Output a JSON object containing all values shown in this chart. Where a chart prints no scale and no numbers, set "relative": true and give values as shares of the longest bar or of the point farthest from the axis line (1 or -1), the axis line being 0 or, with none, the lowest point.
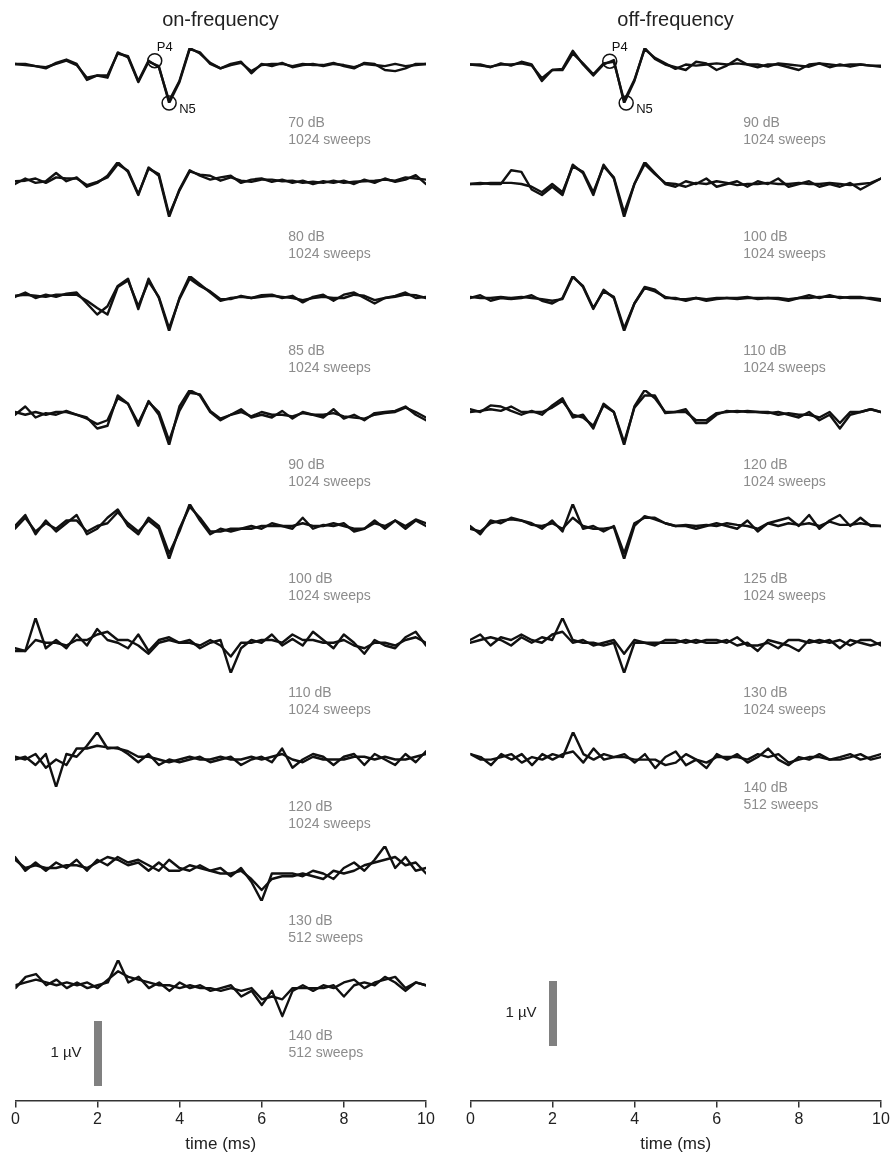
{
  "chart_data": [
    {
      "type": "line",
      "title": "on-frequency",
      "relative": true,
      "xlim": [
        0,
        10
      ],
      "tick_labels": false,
      "x": [
        0,
        0.25,
        0.5,
        0.75,
        1,
        1.25,
        1.5,
        1.75,
        2,
        2.25,
        2.5,
        2.75,
        3,
        3.25,
        3.5,
        3.75,
        4,
        4.25,
        4.5,
        4.75,
        5,
        5.25,
        5.5,
        5.75,
        6,
        6.25,
        6.5,
        6.75,
        7,
        7.25,
        7.5,
        7.75,
        8,
        8.25,
        8.5,
        8.75,
        9,
        9.25,
        9.5,
        9.75,
        10
      ],
      "annotations": [
        "70 dB",
        "1024 sweeps",
        {
          "text": "P4",
          "x": 3.4,
          "y": 0.77
        },
        {
          "text": "N5",
          "x": 3.75,
          "y": 0
        }
      ],
      "series": [
        {
          "color": "#111111",
          "values": [
            0.71,
            0.71,
            0.67,
            0.63,
            0.73,
            0.79,
            0.71,
            0.42,
            0.5,
            0.46,
            0.92,
            0.83,
            0.38,
            0.75,
            0.67,
            0,
            0.38,
            0.98,
            0.92,
            0.71,
            0.63,
            0.71,
            0.75,
            0.54,
            0.71,
            0.67,
            0.73,
            0.65,
            0.69,
            0.71,
            0.67,
            0.71,
            0.69,
            0.65,
            0.71,
            0.69,
            0.67,
            0.71,
            0.67,
            0.69,
            0.71
          ]
        },
        {
          "color": "#111111",
          "values": [
            0.71,
            0.69,
            0.67,
            0.65,
            0.71,
            0.77,
            0.69,
            0.46,
            0.5,
            0.5,
            0.9,
            0.85,
            0.4,
            0.77,
            0.65,
            0.04,
            0.4,
            1,
            0.9,
            0.73,
            0.63,
            0.69,
            0.73,
            0.58,
            0.69,
            0.71,
            0.71,
            0.67,
            0.71,
            0.69,
            0.69,
            0.73,
            0.67,
            0.63,
            0.73,
            0.71,
            0.6,
            0.58,
            0.63,
            0.71,
            0.71
          ]
        }
      ]
    },
    {
      "type": "line",
      "relative": true,
      "xlim": [
        0,
        10
      ],
      "tick_labels": false,
      "x": [
        0,
        0.25,
        0.5,
        0.75,
        1,
        1.25,
        1.5,
        1.75,
        2,
        2.25,
        2.5,
        2.75,
        3,
        3.25,
        3.5,
        3.75,
        4,
        4.25,
        4.5,
        4.75,
        5,
        5.25,
        5.5,
        5.75,
        6,
        6.25,
        6.5,
        6.75,
        7,
        7.25,
        7.5,
        7.75,
        8,
        8.25,
        8.5,
        8.75,
        9,
        9.25,
        9.5,
        9.75,
        10
      ],
      "annotations": [
        "80 dB",
        "1024 sweeps"
      ],
      "series": [
        {
          "color": "#111111",
          "values": [
            0.6,
            0.7,
            0.62,
            0.65,
            0.8,
            0.65,
            0.72,
            0.55,
            0.62,
            0.75,
            1,
            0.82,
            0.4,
            0.9,
            0.75,
            0,
            0.5,
            0.85,
            0.75,
            0.68,
            0.72,
            0.75,
            0.62,
            0.68,
            0.7,
            0.64,
            0.68,
            0.62,
            0.66,
            0.6,
            0.65,
            0.62,
            0.66,
            0.6,
            0.68,
            0.62,
            0.7,
            0.64,
            0.68,
            0.76,
            0.6
          ]
        },
        {
          "color": "#111111",
          "values": [
            0.65,
            0.66,
            0.7,
            0.62,
            0.72,
            0.7,
            0.7,
            0.58,
            0.64,
            0.72,
            0.96,
            0.84,
            0.42,
            0.88,
            0.78,
            0.04,
            0.48,
            0.83,
            0.77,
            0.75,
            0.66,
            0.72,
            0.66,
            0.64,
            0.68,
            0.68,
            0.65,
            0.66,
            0.62,
            0.64,
            0.62,
            0.66,
            0.62,
            0.64,
            0.65,
            0.66,
            0.68,
            0.66,
            0.72,
            0.7,
            0.68
          ]
        }
      ]
    },
    {
      "type": "line",
      "relative": true,
      "xlim": [
        0,
        10
      ],
      "tick_labels": false,
      "x": [
        0,
        0.25,
        0.5,
        0.75,
        1,
        1.25,
        1.5,
        1.75,
        2,
        2.25,
        2.5,
        2.75,
        3,
        3.25,
        3.5,
        3.75,
        4,
        4.25,
        4.5,
        4.75,
        5,
        5.25,
        5.5,
        5.75,
        6,
        6.25,
        6.5,
        6.75,
        7,
        7.25,
        7.5,
        7.75,
        8,
        8.25,
        8.5,
        8.75,
        9,
        9.25,
        9.5,
        9.75,
        10
      ],
      "annotations": [
        "85 dB",
        "1024 sweeps"
      ],
      "series": [
        {
          "color": "#111111",
          "values": [
            0.62,
            0.7,
            0.6,
            0.66,
            0.62,
            0.68,
            0.7,
            0.5,
            0.3,
            0.45,
            0.82,
            0.95,
            0.4,
            0.95,
            0.6,
            0,
            0.6,
            1,
            0.85,
            0.7,
            0.55,
            0.6,
            0.62,
            0.6,
            0.65,
            0.66,
            0.6,
            0.64,
            0.52,
            0.62,
            0.66,
            0.55,
            0.66,
            0.7,
            0.6,
            0.5,
            0.6,
            0.64,
            0.7,
            0.6,
            0.62
          ]
        },
        {
          "color": "#111111",
          "values": [
            0.64,
            0.66,
            0.64,
            0.62,
            0.66,
            0.66,
            0.66,
            0.55,
            0.42,
            0.3,
            0.8,
            0.92,
            0.45,
            0.9,
            0.62,
            0.05,
            0.58,
            0.95,
            0.82,
            0.72,
            0.58,
            0.58,
            0.64,
            0.6,
            0.62,
            0.64,
            0.62,
            0.6,
            0.56,
            0.6,
            0.62,
            0.6,
            0.6,
            0.66,
            0.64,
            0.56,
            0.6,
            0.62,
            0.66,
            0.65,
            0.6
          ]
        }
      ]
    },
    {
      "type": "line",
      "relative": true,
      "xlim": [
        0,
        10
      ],
      "tick_labels": false,
      "x": [
        0,
        0.25,
        0.5,
        0.75,
        1,
        1.25,
        1.5,
        1.75,
        2,
        2.25,
        2.5,
        2.75,
        3,
        3.25,
        3.5,
        3.75,
        4,
        4.25,
        4.5,
        4.75,
        5,
        5.25,
        5.5,
        5.75,
        6,
        6.25,
        6.5,
        6.75,
        7,
        7.25,
        7.5,
        7.75,
        8,
        8.25,
        8.5,
        8.75,
        9,
        9.25,
        9.5,
        9.75,
        10
      ],
      "annotations": [
        "90 dB",
        "1024 sweeps"
      ],
      "series": [
        {
          "color": "#111111",
          "values": [
            0.55,
            0.7,
            0.5,
            0.58,
            0.55,
            0.62,
            0.55,
            0.5,
            0.3,
            0.35,
            0.9,
            0.75,
            0.35,
            0.8,
            0.55,
            0,
            0.7,
            1,
            0.9,
            0.6,
            0.45,
            0.55,
            0.65,
            0.5,
            0.55,
            0.5,
            0.62,
            0.48,
            0.6,
            0.55,
            0.5,
            0.65,
            0.48,
            0.55,
            0.45,
            0.58,
            0.6,
            0.62,
            0.7,
            0.55,
            0.45
          ]
        },
        {
          "color": "#111111",
          "values": [
            0.6,
            0.55,
            0.6,
            0.55,
            0.6,
            0.6,
            0.55,
            0.48,
            0.38,
            0.45,
            0.85,
            0.75,
            0.4,
            0.78,
            0.6,
            0.08,
            0.62,
            0.95,
            0.92,
            0.62,
            0.48,
            0.55,
            0.6,
            0.52,
            0.6,
            0.55,
            0.55,
            0.52,
            0.58,
            0.55,
            0.55,
            0.58,
            0.52,
            0.5,
            0.48,
            0.55,
            0.58,
            0.6,
            0.68,
            0.6,
            0.5
          ]
        }
      ]
    },
    {
      "type": "line",
      "relative": true,
      "xlim": [
        0,
        10
      ],
      "tick_labels": false,
      "x": [
        0,
        0.25,
        0.5,
        0.75,
        1,
        1.25,
        1.5,
        1.75,
        2,
        2.25,
        2.5,
        2.75,
        3,
        3.25,
        3.5,
        3.75,
        4,
        4.25,
        4.5,
        4.75,
        5,
        5.25,
        5.5,
        5.75,
        6,
        6.25,
        6.5,
        6.75,
        7,
        7.25,
        7.5,
        7.75,
        8,
        8.25,
        8.5,
        8.75,
        9,
        9.25,
        9.5,
        9.75,
        10
      ],
      "annotations": [
        "100 dB",
        "1024 sweeps"
      ],
      "series": [
        {
          "color": "#111111",
          "values": [
            0.6,
            0.8,
            0.45,
            0.7,
            0.5,
            0.65,
            0.8,
            0.45,
            0.55,
            0.75,
            0.9,
            0.6,
            0.45,
            0.75,
            0.6,
            0.1,
            0.5,
            1,
            0.7,
            0.45,
            0.55,
            0.5,
            0.55,
            0.6,
            0.55,
            0.65,
            0.6,
            0.55,
            0.75,
            0.55,
            0.62,
            0.6,
            0.65,
            0.5,
            0.55,
            0.65,
            0.6,
            0.7,
            0.55,
            0.7,
            0.6
          ]
        },
        {
          "color": "#111111",
          "values": [
            0.55,
            0.75,
            0.5,
            0.65,
            0.55,
            0.7,
            0.7,
            0.5,
            0.6,
            0.65,
            0.85,
            0.65,
            0.5,
            0.7,
            0.55,
            0,
            0.55,
            0.95,
            0.75,
            0.5,
            0.5,
            0.55,
            0.55,
            0.55,
            0.6,
            0.6,
            0.6,
            0.6,
            0.65,
            0.6,
            0.6,
            0.65,
            0.6,
            0.55,
            0.55,
            0.7,
            0.55,
            0.7,
            0.6,
            0.72,
            0.65
          ]
        }
      ]
    },
    {
      "type": "line",
      "relative": true,
      "xlim": [
        0,
        10
      ],
      "tick_labels": false,
      "x": [
        0,
        0.25,
        0.5,
        0.75,
        1,
        1.25,
        1.5,
        1.75,
        2,
        2.25,
        2.5,
        2.75,
        3,
        3.25,
        3.5,
        3.75,
        4,
        4.25,
        4.5,
        4.75,
        5,
        5.25,
        5.5,
        5.75,
        6,
        6.25,
        6.5,
        6.75,
        7,
        7.25,
        7.5,
        7.75,
        8,
        8.25,
        8.5,
        8.75,
        9,
        9.25,
        9.5,
        9.75,
        10
      ],
      "annotations": [
        "110 dB",
        "1024 sweeps"
      ],
      "series": [
        {
          "color": "#111111",
          "values": [
            0.45,
            0.4,
            1,
            0.45,
            0.6,
            0.45,
            0.7,
            0.5,
            0.8,
            0.6,
            0.55,
            0.45,
            0.7,
            0.4,
            0.6,
            0.65,
            0.55,
            0.6,
            0.45,
            0.55,
            0.6,
            0,
            0.45,
            0.6,
            0.55,
            0.7,
            0.5,
            0.62,
            0.5,
            0.75,
            0.6,
            0.45,
            0.7,
            0.55,
            0.35,
            0.6,
            0.5,
            0.45,
            0.65,
            0.75,
            0.5
          ]
        },
        {
          "color": "#111111",
          "values": [
            0.4,
            0.4,
            0.6,
            0.55,
            0.55,
            0.5,
            0.6,
            0.6,
            0.7,
            0.75,
            0.6,
            0.6,
            0.5,
            0.35,
            0.55,
            0.6,
            0.55,
            0.55,
            0.5,
            0.6,
            0.5,
            0.3,
            0.55,
            0.55,
            0.6,
            0.6,
            0.55,
            0.7,
            0.6,
            0.6,
            0.55,
            0.55,
            0.6,
            0.5,
            0.45,
            0.55,
            0.55,
            0.5,
            0.6,
            0.65,
            0.55
          ]
        }
      ]
    },
    {
      "type": "line",
      "relative": true,
      "xlim": [
        0,
        10
      ],
      "tick_labels": false,
      "x": [
        0,
        0.25,
        0.5,
        0.75,
        1,
        1.25,
        1.5,
        1.75,
        2,
        2.25,
        2.5,
        2.75,
        3,
        3.25,
        3.5,
        3.75,
        4,
        4.25,
        4.5,
        4.75,
        5,
        5.25,
        5.5,
        5.75,
        6,
        6.25,
        6.5,
        6.75,
        7,
        7.25,
        7.5,
        7.75,
        8,
        8.25,
        8.5,
        8.75,
        9,
        9.25,
        9.5,
        9.75,
        10
      ],
      "annotations": [
        "120 dB",
        "1024 sweeps"
      ],
      "series": [
        {
          "color": "#111111",
          "values": [
            0.5,
            0.55,
            0.4,
            0.6,
            0,
            0.6,
            0.55,
            0.75,
            1,
            0.7,
            0.72,
            0.6,
            0.45,
            0.6,
            0.4,
            0.5,
            0.45,
            0.5,
            0.55,
            0.45,
            0.5,
            0.55,
            0.4,
            0.5,
            0.55,
            0.45,
            0.7,
            0.35,
            0.5,
            0.6,
            0.55,
            0.4,
            0.55,
            0.6,
            0.4,
            0.6,
            0.5,
            0.4,
            0.6,
            0.45,
            0.65
          ]
        },
        {
          "color": "#111111",
          "values": [
            0.55,
            0.5,
            0.6,
            0.35,
            0.5,
            0.4,
            0.7,
            0.7,
            0.75,
            0.72,
            0.7,
            0.65,
            0.55,
            0.55,
            0.5,
            0.45,
            0.5,
            0.55,
            0.5,
            0.5,
            0.55,
            0.5,
            0.5,
            0.55,
            0.5,
            0.55,
            0.6,
            0.5,
            0.45,
            0.55,
            0.5,
            0.5,
            0.5,
            0.55,
            0.55,
            0.5,
            0.55,
            0.5,
            0.5,
            0.55,
            0.6
          ]
        }
      ]
    },
    {
      "type": "line",
      "relative": true,
      "xlim": [
        0,
        10
      ],
      "tick_labels": false,
      "x": [
        0,
        0.25,
        0.5,
        0.75,
        1,
        1.25,
        1.5,
        1.75,
        2,
        2.25,
        2.5,
        2.75,
        3,
        3.25,
        3.5,
        3.75,
        4,
        4.25,
        4.5,
        4.75,
        5,
        5.25,
        5.5,
        5.75,
        6,
        6.25,
        6.5,
        6.75,
        7,
        7.25,
        7.5,
        7.75,
        8,
        8.25,
        8.5,
        8.75,
        9,
        9.25,
        9.5,
        9.75,
        10
      ],
      "annotations": [
        "130 dB",
        "512 sweeps"
      ],
      "series": [
        {
          "color": "#111111",
          "values": [
            0.8,
            0.55,
            0.7,
            0.55,
            0.7,
            0.6,
            0.75,
            0.55,
            0.75,
            0.65,
            0.8,
            0.7,
            0.75,
            0.65,
            0.55,
            0.75,
            0.6,
            0.55,
            0.65,
            0.55,
            0.6,
            0.45,
            0.6,
            0.35,
            0,
            0.5,
            0.5,
            0.5,
            0.45,
            0.55,
            0.5,
            0.4,
            0.6,
            0.7,
            0.55,
            0.75,
            1,
            0.6,
            0.8,
            0.55,
            0.6
          ]
        },
        {
          "color": "#111111",
          "values": [
            0.75,
            0.6,
            0.65,
            0.6,
            0.6,
            0.65,
            0.65,
            0.6,
            0.7,
            0.8,
            0.75,
            0.65,
            0.7,
            0.55,
            0.7,
            0.55,
            0.55,
            0.65,
            0.6,
            0.55,
            0.5,
            0.5,
            0.55,
            0.4,
            0.2,
            0.4,
            0.45,
            0.45,
            0.5,
            0.45,
            0.4,
            0.55,
            0.5,
            0.55,
            0.65,
            0.7,
            0.75,
            0.8,
            0.65,
            0.7,
            0.5
          ]
        }
      ]
    },
    {
      "type": "line",
      "relative": true,
      "xlim": [
        0,
        10
      ],
      "xticks": [
        0,
        2,
        4,
        6,
        8,
        10
      ],
      "xlabel": "time (ms)",
      "tick_labels": "x",
      "x": [
        0,
        0.25,
        0.5,
        0.75,
        1,
        1.25,
        1.5,
        1.75,
        2,
        2.25,
        2.5,
        2.75,
        3,
        3.25,
        3.5,
        3.75,
        4,
        4.25,
        4.5,
        4.75,
        5,
        5.25,
        5.5,
        5.75,
        6,
        6.25,
        6.5,
        6.75,
        7,
        7.25,
        7.5,
        7.75,
        8,
        8.25,
        8.5,
        8.75,
        9,
        9.25,
        9.5,
        9.75,
        10
      ],
      "annotations": [
        "140 dB",
        "512 sweeps",
        "1 µV"
      ],
      "series": [
        {
          "color": "#111111",
          "values": [
            0.8,
            0.88,
            0.9,
            0.82,
            0.86,
            0.8,
            0.84,
            0.8,
            0.82,
            0.84,
            1,
            0.84,
            0.88,
            0.8,
            0.84,
            0.78,
            0.84,
            0.8,
            0.82,
            0.78,
            0.8,
            0.82,
            0.74,
            0.78,
            0.68,
            0.78,
            0.6,
            0.78,
            0.82,
            0.78,
            0.82,
            0.8,
            0.84,
            0.86,
            0.8,
            0.84,
            0.86,
            0.88,
            0.8,
            0.84,
            0.82
          ]
        },
        {
          "color": "#111111",
          "values": [
            0.82,
            0.84,
            0.86,
            0.84,
            0.82,
            0.84,
            0.82,
            0.84,
            0.8,
            0.86,
            0.92,
            0.88,
            0.86,
            0.84,
            0.82,
            0.82,
            0.8,
            0.82,
            0.8,
            0.8,
            0.78,
            0.8,
            0.78,
            0.8,
            0.72,
            0.74,
            0.72,
            0.8,
            0.8,
            0.8,
            0.8,
            0.82,
            0.74,
            0.82,
            0.84,
            0.82,
            0.88,
            0.84,
            0.78,
            0.84,
            0.82
          ]
        }
      ]
    },
    {
      "type": "line",
      "title": "off-frequency",
      "relative": true,
      "xlim": [
        0,
        10
      ],
      "tick_labels": false,
      "x": [
        0,
        0.25,
        0.5,
        0.75,
        1,
        1.25,
        1.5,
        1.75,
        2,
        2.25,
        2.5,
        2.75,
        3,
        3.25,
        3.5,
        3.75,
        4,
        4.25,
        4.5,
        4.75,
        5,
        5.25,
        5.5,
        5.75,
        6,
        6.25,
        6.5,
        6.75,
        7,
        7.25,
        7.5,
        7.75,
        8,
        8.25,
        8.5,
        8.75,
        9,
        9.25,
        9.5,
        9.75,
        10
      ],
      "annotations": [
        "90 dB",
        "1024 sweeps",
        {
          "text": "P4",
          "x": 3.4,
          "y": 0.76
        },
        {
          "text": "N5",
          "x": 3.8,
          "y": 0
        }
      ],
      "series": [
        {
          "color": "#111111",
          "values": [
            0.7,
            0.7,
            0.65,
            0.72,
            0.68,
            0.75,
            0.7,
            0.4,
            0.6,
            0.62,
            0.95,
            0.7,
            0.5,
            0.7,
            0.78,
            0,
            0.4,
            1,
            0.8,
            0.7,
            0.65,
            0.6,
            0.75,
            0.72,
            0.6,
            0.68,
            0.8,
            0.7,
            0.65,
            0.7,
            0.7,
            0.65,
            0.6,
            0.7,
            0.72,
            0.65,
            0.7,
            0.66,
            0.7,
            0.68,
            0.66
          ]
        },
        {
          "color": "#111111",
          "values": [
            0.7,
            0.68,
            0.66,
            0.7,
            0.7,
            0.72,
            0.68,
            0.45,
            0.6,
            0.6,
            0.9,
            0.72,
            0.52,
            0.72,
            0.75,
            0.04,
            0.42,
            0.98,
            0.82,
            0.72,
            0.62,
            0.7,
            0.68,
            0.7,
            0.72,
            0.7,
            0.72,
            0.7,
            0.7,
            0.66,
            0.72,
            0.7,
            0.68,
            0.66,
            0.72,
            0.7,
            0.68,
            0.7,
            0.7,
            0.68,
            0.68
          ]
        }
      ]
    },
    {
      "type": "line",
      "relative": true,
      "xlim": [
        0,
        10
      ],
      "tick_labels": false,
      "x": [
        0,
        0.25,
        0.5,
        0.75,
        1,
        1.25,
        1.5,
        1.75,
        2,
        2.25,
        2.5,
        2.75,
        3,
        3.25,
        3.5,
        3.75,
        4,
        4.25,
        4.5,
        4.75,
        5,
        5.25,
        5.5,
        5.75,
        6,
        6.25,
        6.5,
        6.75,
        7,
        7.25,
        7.5,
        7.75,
        8,
        8.25,
        8.5,
        8.75,
        9,
        9.25,
        9.5,
        9.75,
        10
      ],
      "annotations": [
        "100 dB",
        "1024 sweeps"
      ],
      "series": [
        {
          "color": "#111111",
          "values": [
            0.6,
            0.62,
            0.6,
            0.6,
            0.85,
            0.82,
            0.5,
            0.4,
            0.55,
            0.4,
            0.95,
            0.8,
            0.4,
            0.95,
            0.7,
            0,
            0.6,
            1,
            0.8,
            0.6,
            0.55,
            0.65,
            0.6,
            0.7,
            0.55,
            0.6,
            0.65,
            0.55,
            0.65,
            0.6,
            0.7,
            0.55,
            0.6,
            0.65,
            0.55,
            0.6,
            0.55,
            0.62,
            0.5,
            0.6,
            0.7
          ]
        },
        {
          "color": "#111111",
          "values": [
            0.6,
            0.6,
            0.62,
            0.62,
            0.62,
            0.6,
            0.55,
            0.45,
            0.6,
            0.45,
            0.92,
            0.82,
            0.45,
            0.92,
            0.72,
            0.08,
            0.6,
            0.96,
            0.78,
            0.62,
            0.6,
            0.55,
            0.62,
            0.6,
            0.65,
            0.62,
            0.58,
            0.6,
            0.6,
            0.62,
            0.6,
            0.6,
            0.62,
            0.6,
            0.6,
            0.62,
            0.6,
            0.58,
            0.6,
            0.62,
            0.7
          ]
        }
      ]
    },
    {
      "type": "line",
      "relative": true,
      "xlim": [
        0,
        10
      ],
      "tick_labels": false,
      "x": [
        0,
        0.25,
        0.5,
        0.75,
        1,
        1.25,
        1.5,
        1.75,
        2,
        2.25,
        2.5,
        2.75,
        3,
        3.25,
        3.5,
        3.75,
        4,
        4.25,
        4.5,
        4.75,
        5,
        5.25,
        5.5,
        5.75,
        6,
        6.25,
        6.5,
        6.75,
        7,
        7.25,
        7.5,
        7.75,
        8,
        8.25,
        8.5,
        8.75,
        9,
        9.25,
        9.5,
        9.75,
        10
      ],
      "annotations": [
        "110 dB",
        "1024 sweeps"
      ],
      "series": [
        {
          "color": "#111111",
          "values": [
            0.6,
            0.65,
            0.55,
            0.6,
            0.58,
            0.6,
            0.65,
            0.55,
            0.5,
            0.6,
            1,
            0.8,
            0.4,
            0.75,
            0.6,
            0,
            0.5,
            0.8,
            0.75,
            0.6,
            0.6,
            0.55,
            0.6,
            0.55,
            0.58,
            0.6,
            0.6,
            0.62,
            0.58,
            0.6,
            0.58,
            0.55,
            0.6,
            0.65,
            0.6,
            0.65,
            0.6,
            0.62,
            0.62,
            0.58,
            0.55
          ]
        },
        {
          "color": "#111111",
          "values": [
            0.62,
            0.6,
            0.6,
            0.62,
            0.6,
            0.62,
            0.6,
            0.58,
            0.55,
            0.58,
            0.98,
            0.82,
            0.42,
            0.72,
            0.62,
            0.05,
            0.5,
            0.78,
            0.72,
            0.62,
            0.58,
            0.58,
            0.6,
            0.58,
            0.6,
            0.6,
            0.58,
            0.6,
            0.6,
            0.6,
            0.6,
            0.58,
            0.6,
            0.6,
            0.62,
            0.62,
            0.62,
            0.6,
            0.6,
            0.6,
            0.58
          ]
        }
      ]
    },
    {
      "type": "line",
      "relative": true,
      "xlim": [
        0,
        10
      ],
      "tick_labels": false,
      "x": [
        0,
        0.25,
        0.5,
        0.75,
        1,
        1.25,
        1.5,
        1.75,
        2,
        2.25,
        2.5,
        2.75,
        3,
        3.25,
        3.5,
        3.75,
        4,
        4.25,
        4.5,
        4.75,
        5,
        5.25,
        5.5,
        5.75,
        6,
        6.25,
        6.5,
        6.75,
        7,
        7.25,
        7.5,
        7.75,
        8,
        8.25,
        8.5,
        8.75,
        9,
        9.25,
        9.5,
        9.75,
        10
      ],
      "annotations": [
        "120 dB",
        "1024 sweeps"
      ],
      "series": [
        {
          "color": "#111111",
          "values": [
            0.65,
            0.6,
            0.72,
            0.7,
            0.62,
            0.55,
            0.62,
            0.55,
            0.72,
            0.85,
            0.5,
            0.55,
            0.3,
            0.75,
            0.6,
            0,
            0.7,
            1,
            0.85,
            0.6,
            0.6,
            0.65,
            0.4,
            0.4,
            0.55,
            0.62,
            0.6,
            0.62,
            0.6,
            0.58,
            0.6,
            0.55,
            0.5,
            0.6,
            0.45,
            0.55,
            0.3,
            0.55,
            0.6,
            0.65,
            0.6
          ]
        },
        {
          "color": "#111111",
          "values": [
            0.6,
            0.62,
            0.65,
            0.62,
            0.7,
            0.6,
            0.6,
            0.6,
            0.68,
            0.8,
            0.55,
            0.5,
            0.35,
            0.72,
            0.6,
            0.05,
            0.68,
            0.9,
            0.9,
            0.58,
            0.6,
            0.6,
            0.45,
            0.45,
            0.58,
            0.6,
            0.62,
            0.6,
            0.6,
            0.6,
            0.55,
            0.58,
            0.55,
            0.55,
            0.5,
            0.6,
            0.4,
            0.6,
            0.6,
            0.65,
            0.6
          ]
        }
      ]
    },
    {
      "type": "line",
      "relative": true,
      "xlim": [
        0,
        10
      ],
      "tick_labels": false,
      "x": [
        0,
        0.25,
        0.5,
        0.75,
        1,
        1.25,
        1.5,
        1.75,
        2,
        2.25,
        2.5,
        2.75,
        3,
        3.25,
        3.5,
        3.75,
        4,
        4.25,
        4.5,
        4.75,
        5,
        5.25,
        5.5,
        5.75,
        6,
        6.25,
        6.5,
        6.75,
        7,
        7.25,
        7.5,
        7.75,
        8,
        8.25,
        8.5,
        8.75,
        9,
        9.25,
        9.5,
        9.75,
        10
      ],
      "annotations": [
        "125 dB",
        "1024 sweeps"
      ],
      "series": [
        {
          "color": "#111111",
          "values": [
            0.6,
            0.45,
            0.7,
            0.65,
            0.75,
            0.7,
            0.65,
            0.55,
            0.7,
            0.5,
            1,
            0.55,
            0.6,
            0.5,
            0.6,
            0.1,
            0.65,
            0.75,
            0.75,
            0.65,
            0.6,
            0.6,
            0.55,
            0.6,
            0.65,
            0.6,
            0.55,
            0.7,
            0.5,
            0.65,
            0.7,
            0.75,
            0.6,
            0.8,
            0.55,
            0.7,
            0.8,
            0.6,
            0.75,
            0.6,
            0.6
          ]
        },
        {
          "color": "#111111",
          "values": [
            0.55,
            0.5,
            0.65,
            0.7,
            0.72,
            0.7,
            0.62,
            0.6,
            0.65,
            0.55,
            0.75,
            0.6,
            0.55,
            0.55,
            0.58,
            0,
            0.6,
            0.78,
            0.72,
            0.65,
            0.6,
            0.62,
            0.6,
            0.62,
            0.6,
            0.65,
            0.62,
            0.6,
            0.55,
            0.65,
            0.6,
            0.65,
            0.62,
            0.65,
            0.6,
            0.68,
            0.62,
            0.62,
            0.65,
            0.62,
            0.6
          ]
        }
      ]
    },
    {
      "type": "line",
      "relative": true,
      "xlim": [
        0,
        10
      ],
      "tick_labels": false,
      "x": [
        0,
        0.25,
        0.5,
        0.75,
        1,
        1.25,
        1.5,
        1.75,
        2,
        2.25,
        2.5,
        2.75,
        3,
        3.25,
        3.5,
        3.75,
        4,
        4.25,
        4.5,
        4.75,
        5,
        5.25,
        5.5,
        5.75,
        6,
        6.25,
        6.5,
        6.75,
        7,
        7.25,
        7.5,
        7.75,
        8,
        8.25,
        8.5,
        8.75,
        9,
        9.25,
        9.5,
        9.75,
        10
      ],
      "annotations": [
        "130 dB",
        "1024 sweeps"
      ],
      "series": [
        {
          "color": "#111111",
          "values": [
            0.6,
            0.7,
            0.5,
            0.65,
            0.6,
            0.7,
            0.6,
            0.55,
            0.7,
            0.75,
            0.55,
            0.6,
            0.5,
            0.55,
            0.6,
            0.35,
            0.6,
            0.55,
            0.5,
            0.6,
            0.6,
            0.55,
            0.6,
            0.55,
            0.55,
            0.6,
            0.5,
            0.55,
            0.4,
            0.6,
            0.55,
            0.5,
            0.4,
            0.6,
            0.55,
            0.6,
            0.45,
            0.6,
            0.55,
            0.5,
            0.55
          ]
        },
        {
          "color": "#111111",
          "values": [
            0.55,
            0.6,
            0.65,
            0.6,
            0.5,
            0.65,
            0.55,
            0.65,
            0.6,
            1,
            0.6,
            0.55,
            0.55,
            0.5,
            0.55,
            0,
            0.55,
            0.55,
            0.55,
            0.55,
            0.55,
            0.6,
            0.55,
            0.6,
            0.6,
            0.55,
            0.65,
            0.5,
            0.5,
            0.55,
            0.45,
            0.6,
            0.6,
            0.55,
            0.6,
            0.55,
            0.6,
            0.5,
            0.6,
            0.6,
            0.5
          ]
        }
      ]
    },
    {
      "type": "line",
      "relative": true,
      "xlim": [
        0,
        10
      ],
      "xticks": [
        0,
        2,
        4,
        6,
        8,
        10
      ],
      "xlabel": "time (ms)",
      "tick_labels": "x",
      "x": [
        0,
        0.25,
        0.5,
        0.75,
        1,
        1.25,
        1.5,
        1.75,
        2,
        2.25,
        2.5,
        2.75,
        3,
        3.25,
        3.5,
        3.75,
        4,
        4.25,
        4.5,
        4.75,
        5,
        5.25,
        5.5,
        5.75,
        6,
        6.25,
        6.5,
        6.75,
        7,
        7.25,
        7.5,
        7.75,
        8,
        8.25,
        8.5,
        8.75,
        9,
        9.25,
        9.5,
        9.75,
        10
      ],
      "annotations": [
        "140 dB",
        "512 sweeps",
        "1 µV"
      ],
      "series": [
        {
          "color": "#111111",
          "values": [
            0.94,
            0.932,
            0.91,
            0.94,
            0.925,
            0.94,
            0.91,
            0.94,
            0.925,
            0.94,
            0.947,
            0.917,
            0.955,
            0.925,
            0.932,
            0.94,
            0.917,
            0.94,
            0.902,
            0.932,
            0.947,
            0.91,
            0.925,
            0.902,
            0.94,
            0.925,
            0.94,
            0.917,
            0.932,
            0.955,
            0.925,
            0.91,
            0.932,
            0.925,
            0.94,
            0.925,
            0.932,
            0.94,
            0.925,
            0.932,
            0.94
          ]
        },
        {
          "color": "#111111",
          "values": [
            0.94,
            0.925,
            0.925,
            0.932,
            0.94,
            0.917,
            0.932,
            0.925,
            0.94,
            0.932,
            1,
            0.94,
            0.925,
            0.94,
            0.932,
            0.932,
            0.925,
            0.925,
            0.925,
            0.91,
            0.917,
            0.94,
            0.925,
            0.917,
            0.932,
            0.932,
            0.932,
            0.925,
            0.94,
            0.932,
            0.94,
            0.917,
            0.925,
            0.932,
            0.932,
            0.925,
            0.925,
            0.932,
            0.94,
            0.925,
            0.932
          ]
        }
      ]
    }
  ]
}
